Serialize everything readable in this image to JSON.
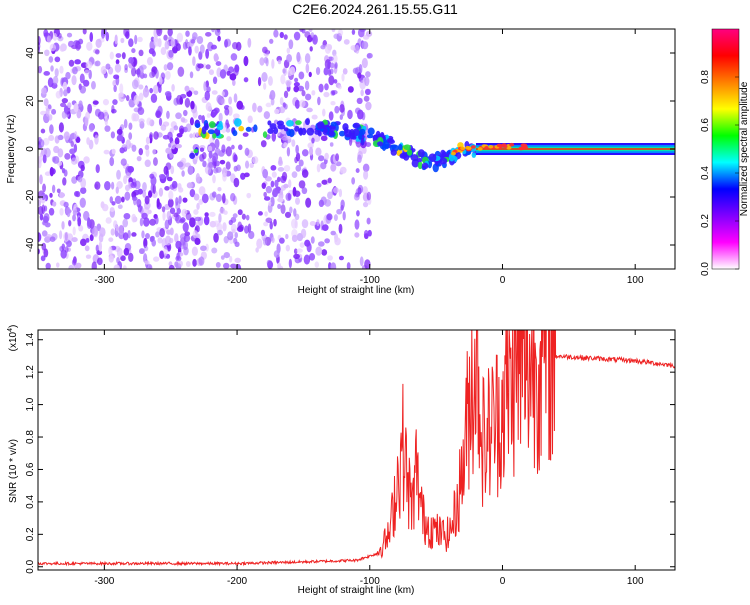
{
  "title": "C2E6.2024.261.15.55.G11",
  "chart_data": [
    {
      "type": "heatmap",
      "xlabel": "Height of straight line (km)",
      "ylabel": "Frequency (Hz)",
      "xlim": [
        -350,
        130
      ],
      "ylim": [
        -50,
        50
      ],
      "xticks": [
        -300,
        -200,
        -100,
        0,
        100
      ],
      "yticks": [
        -40,
        -20,
        0,
        20,
        40
      ],
      "colorbar": {
        "label": "Normalized spectral amplitude",
        "range": [
          0,
          1
        ],
        "ticks": [
          0.0,
          0.2,
          0.4,
          0.6,
          0.8
        ],
        "colormap": [
          "#ffffff",
          "#ff00ff",
          "#8000ff",
          "#0000ff",
          "#00ffff",
          "#00ff00",
          "#ffff00",
          "#ff8000",
          "#ff0000",
          "#ff0080"
        ]
      },
      "features": {
        "noise_region_x": [
          -350,
          -100
        ],
        "signal_band_center_hz": 0,
        "signal_track": [
          {
            "x": -230,
            "y": 8
          },
          {
            "x": -130,
            "y": 9
          },
          {
            "x": -110,
            "y": 7
          },
          {
            "x": -90,
            "y": 3
          },
          {
            "x": -70,
            "y": -2
          },
          {
            "x": -55,
            "y": -6
          },
          {
            "x": -45,
            "y": -4
          },
          {
            "x": -30,
            "y": 0
          },
          {
            "x": -10,
            "y": 1
          },
          {
            "x": 10,
            "y": 1
          },
          {
            "x": 130,
            "y": 0
          }
        ]
      }
    },
    {
      "type": "line",
      "xlabel": "Height of straight line (km)",
      "ylabel": "SNR (10 * v/v)",
      "y_multiplier": "(x10",
      "y_multiplier_exp": "4",
      "y_multiplier_close": ")",
      "xlim": [
        -350,
        130
      ],
      "ylim": [
        -0.02,
        1.46
      ],
      "xticks": [
        -300,
        -200,
        -100,
        0,
        100
      ],
      "yticks": [
        0.0,
        0.2,
        0.4,
        0.6,
        0.8,
        1.0,
        1.2,
        1.4
      ],
      "line_color": "#ee2222",
      "series": [
        {
          "x": [
            -350,
            -300,
            -250,
            -200,
            -150,
            -110,
            -95,
            -85,
            -80,
            -75,
            -72,
            -68,
            -65,
            -60,
            -55,
            -50,
            -45,
            -40,
            -35,
            -30,
            -27,
            -24,
            -20,
            -17,
            -15,
            -12,
            -10,
            -5,
            0,
            5,
            10,
            20,
            30,
            40,
            60,
            80,
            100,
            130
          ],
          "y": [
            0.02,
            0.02,
            0.02,
            0.02,
            0.03,
            0.04,
            0.08,
            0.2,
            0.5,
            0.75,
            0.55,
            0.35,
            0.6,
            0.3,
            0.25,
            0.22,
            0.2,
            0.2,
            0.35,
            0.6,
            0.85,
            1.1,
            1.3,
            1.05,
            0.8,
            0.75,
            0.85,
            0.9,
            1.0,
            1.1,
            1.2,
            1.25,
            1.28,
            1.3,
            1.29,
            1.28,
            1.27,
            1.24
          ]
        }
      ]
    }
  ]
}
